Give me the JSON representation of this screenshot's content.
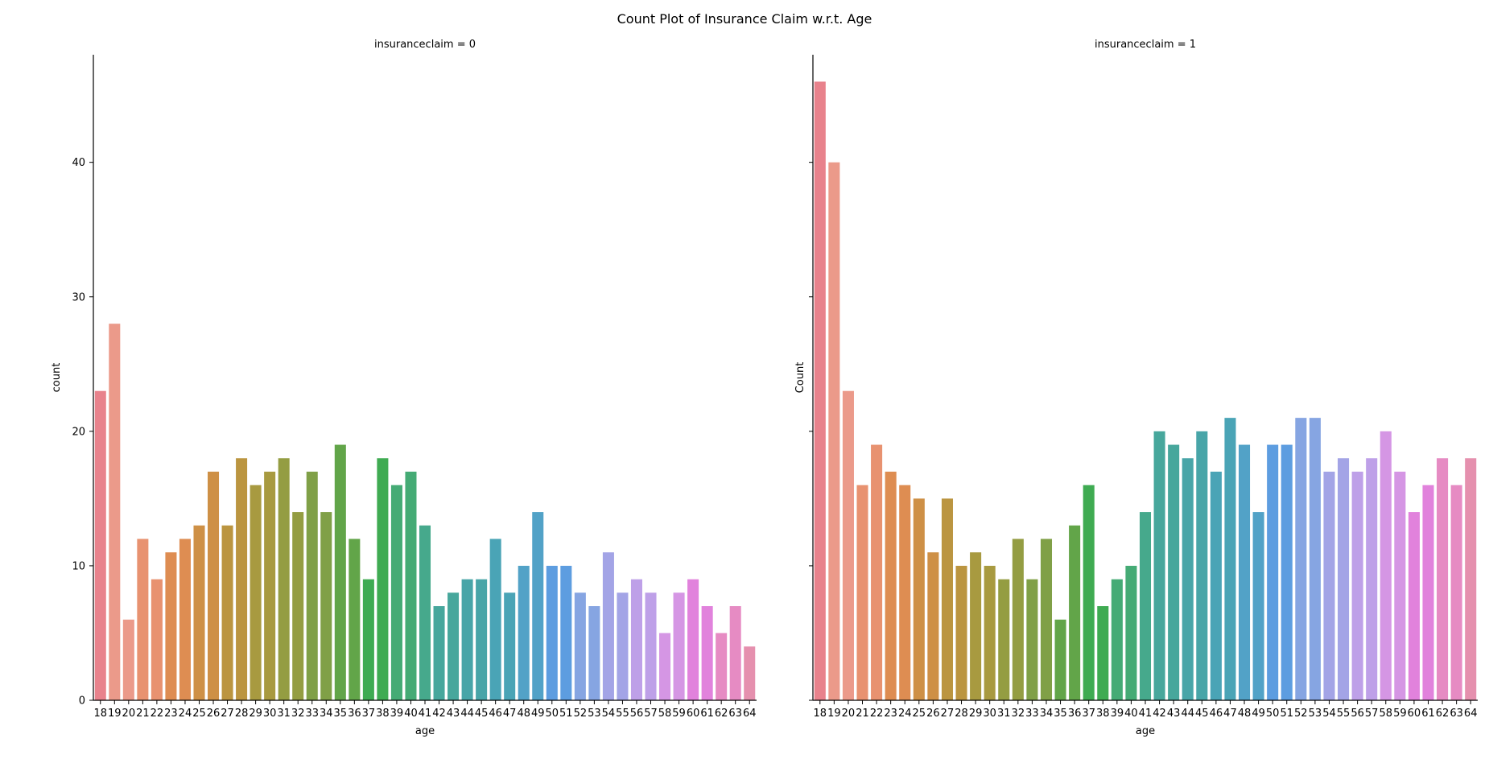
{
  "title": "Count Plot of Insurance Claim w.r.t. Age",
  "chart_data": [
    {
      "type": "bar",
      "title": "insuranceclaim = 0",
      "xlabel": "age",
      "ylabel": "count",
      "ylim": [
        0,
        48
      ],
      "yticks": [
        0,
        10,
        20,
        30,
        40
      ],
      "grid": false,
      "categories": [
        "18",
        "19",
        "20",
        "21",
        "22",
        "23",
        "24",
        "25",
        "26",
        "27",
        "28",
        "29",
        "30",
        "31",
        "32",
        "33",
        "34",
        "35",
        "36",
        "37",
        "38",
        "39",
        "40",
        "41",
        "42",
        "43",
        "44",
        "45",
        "46",
        "47",
        "48",
        "49",
        "50",
        "51",
        "52",
        "53",
        "54",
        "55",
        "56",
        "57",
        "58",
        "59",
        "60",
        "61",
        "62",
        "63",
        "64"
      ],
      "values": [
        23,
        28,
        6,
        12,
        9,
        11,
        12,
        13,
        17,
        13,
        18,
        16,
        17,
        18,
        14,
        17,
        14,
        19,
        12,
        9,
        18,
        16,
        17,
        13,
        7,
        8,
        9,
        9,
        12,
        8,
        10,
        14,
        10,
        10,
        8,
        7,
        11,
        8,
        9,
        8,
        5,
        8,
        9,
        7,
        5,
        7,
        4
      ]
    },
    {
      "type": "bar",
      "title": "insuranceclaim = 1",
      "xlabel": "age",
      "ylabel": "Count",
      "ylim": [
        0,
        48
      ],
      "yticks": [
        0,
        10,
        20,
        30,
        40
      ],
      "grid": false,
      "categories": [
        "18",
        "19",
        "20",
        "21",
        "22",
        "23",
        "24",
        "25",
        "26",
        "27",
        "28",
        "29",
        "30",
        "31",
        "32",
        "33",
        "34",
        "35",
        "36",
        "37",
        "38",
        "39",
        "40",
        "41",
        "42",
        "43",
        "44",
        "45",
        "46",
        "47",
        "48",
        "49",
        "50",
        "51",
        "52",
        "53",
        "54",
        "55",
        "56",
        "57",
        "58",
        "59",
        "60",
        "61",
        "62",
        "63",
        "64"
      ],
      "values": [
        46,
        40,
        23,
        16,
        19,
        17,
        16,
        15,
        11,
        15,
        10,
        11,
        10,
        9,
        12,
        9,
        12,
        6,
        13,
        16,
        7,
        9,
        10,
        14,
        20,
        19,
        18,
        20,
        17,
        21,
        19,
        14,
        19,
        19,
        21,
        21,
        17,
        18,
        17,
        18,
        20,
        17,
        14,
        16,
        18,
        16,
        18
      ]
    }
  ],
  "palette": [
    "#e8828c",
    "#eb9a8a",
    "#e89270",
    "#de8d52",
    "#ce9046",
    "#bb9540",
    "#a89a40",
    "#949d42",
    "#80a047",
    "#62a549",
    "#3fab52",
    "#45ab75",
    "#46a98c",
    "#47a79c",
    "#48a5a8",
    "#4aa4b6",
    "#52a2c7",
    "#5d9de0",
    "#86a5e2",
    "#a3a4e6",
    "#bea0e8",
    "#d596e4",
    "#e182dc",
    "#e68bc3",
    "#e590ae"
  ]
}
